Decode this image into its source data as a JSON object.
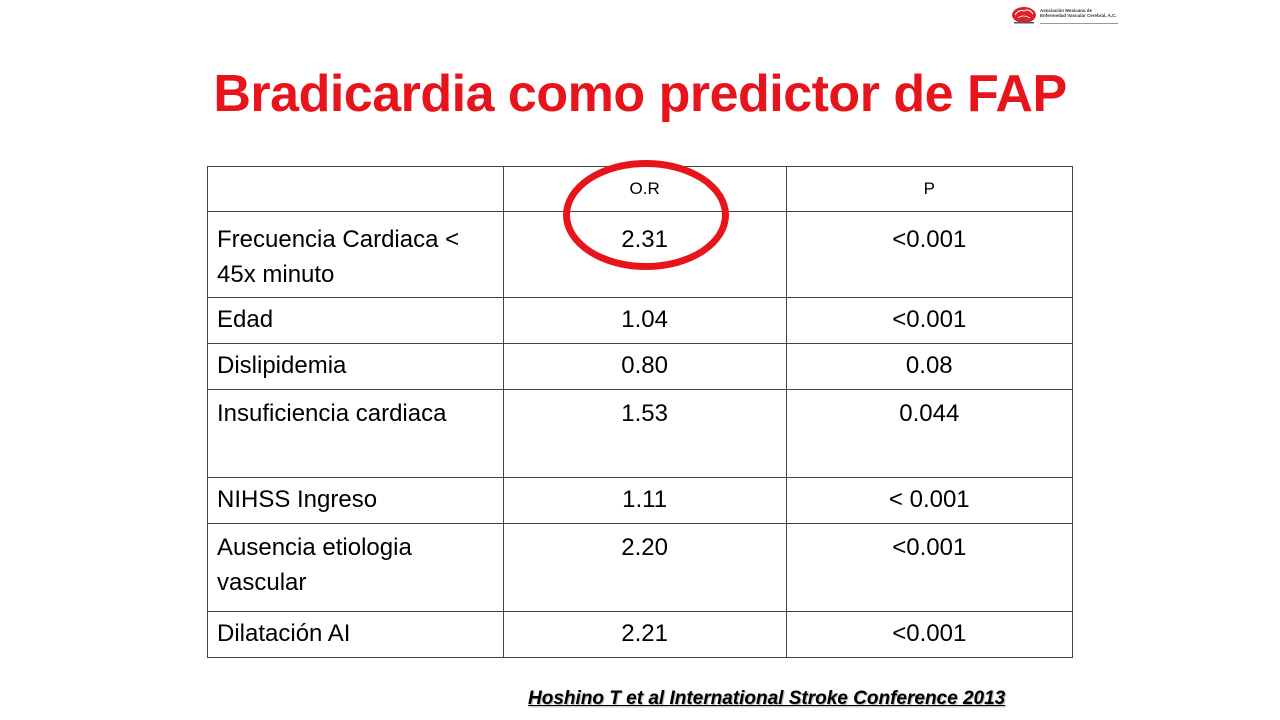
{
  "logo": {
    "line1": "Asociación Mexicana de",
    "line2": "Enfermedad Vascular Cerebral, A.C."
  },
  "title": "Bradicardia como predictor de FAP",
  "table": {
    "headers": [
      "",
      "O.R",
      "P"
    ],
    "rows": [
      {
        "label": "Frecuencia Cardiaca < 45x minuto",
        "or": "2.31",
        "p": "<0.001"
      },
      {
        "label": "Edad",
        "or": "1.04",
        "p": "<0.001"
      },
      {
        "label": "Dislipidemia",
        "or": "0.80",
        "p": "0.08"
      },
      {
        "label": "Insuficiencia cardiaca",
        "or": "1.53",
        "p": "0.044"
      },
      {
        "label": "NIHSS Ingreso",
        "or": "1.11",
        "p": "< 0.001"
      },
      {
        "label": "Ausencia etiologia vascular",
        "or": "2.20",
        "p": "<0.001"
      },
      {
        "label": "Dilatación AI",
        "or": "2.21",
        "p": "<0.001"
      }
    ]
  },
  "citation": "Hoshino T et al International Stroke Conference 2013",
  "colors": {
    "title": "#e8141c",
    "highlight_circle": "#e8141c",
    "table_border": "#444444"
  }
}
